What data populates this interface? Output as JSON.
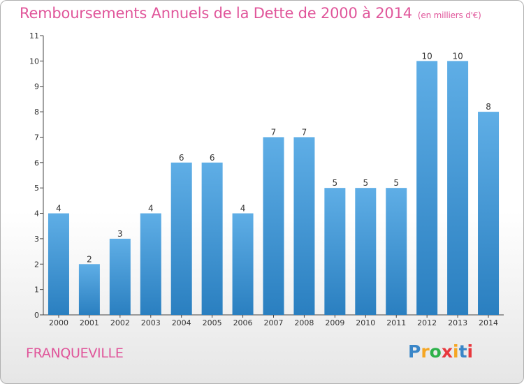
{
  "title": "Remboursements Annuels de la Dette de 2000 à 2014",
  "subtitle": "(en milliers d'€)",
  "place": "FRANQUEVILLE",
  "logo": {
    "letters": [
      "P",
      "r",
      "o",
      "x",
      "i",
      "t",
      "i"
    ],
    "colors": [
      "#3a86c8",
      "#f5a623",
      "#2db24a",
      "#e8383d",
      "#f5a623",
      "#3a86c8",
      "#e8383d"
    ]
  },
  "colors": {
    "bar_top": "#5faee6",
    "bar_bottom": "#2a7fc0",
    "title": "#e0559a"
  },
  "chart_data": {
    "type": "bar",
    "categories": [
      "2000",
      "2001",
      "2002",
      "2003",
      "2004",
      "2005",
      "2006",
      "2007",
      "2008",
      "2009",
      "2010",
      "2011",
      "2012",
      "2013",
      "2014"
    ],
    "values": [
      4,
      2,
      3,
      4,
      6,
      6,
      4,
      7,
      7,
      5,
      5,
      5,
      10,
      10,
      8
    ],
    "data_labels": [
      "4",
      "2",
      "3",
      "4",
      "6",
      "6",
      "4",
      "7",
      "7",
      "5",
      "5",
      "5",
      "10",
      "10",
      "8"
    ],
    "yticks": [
      "0",
      "1",
      "2",
      "3",
      "4",
      "5",
      "6",
      "7",
      "8",
      "9",
      "10",
      "11"
    ],
    "ylim": [
      0,
      11
    ],
    "grid": false
  }
}
